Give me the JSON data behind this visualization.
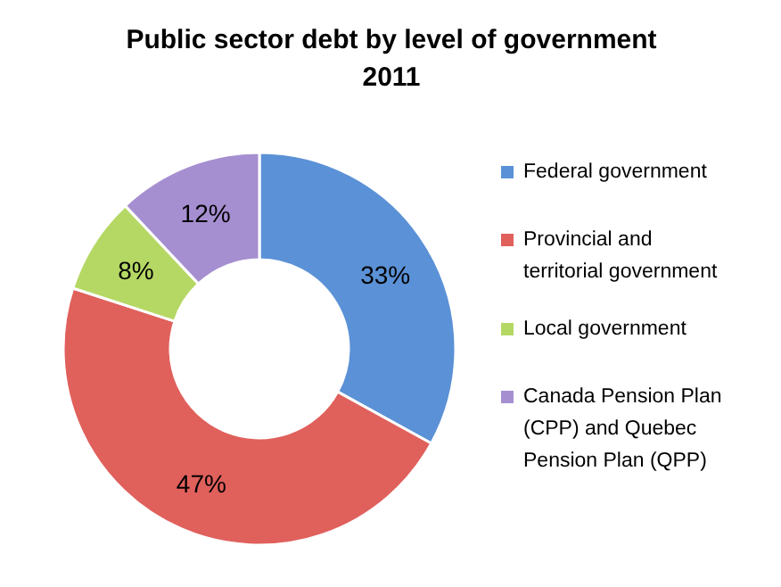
{
  "chart_data": {
    "type": "donut",
    "title": "Public sector debt by level of government",
    "subtitle": "2011",
    "categories": [
      "Federal government",
      "Provincial and territorial government",
      "Local government",
      "Canada Pension Plan (CPP) and Quebec Pension Plan (QPP)"
    ],
    "values": [
      33,
      47,
      8,
      12
    ],
    "colors": [
      "#5b91d6",
      "#e0605c",
      "#b5d864",
      "#a58fd0"
    ],
    "value_labels": [
      "33%",
      "47%",
      "8%",
      "12%"
    ],
    "legend": "right"
  }
}
